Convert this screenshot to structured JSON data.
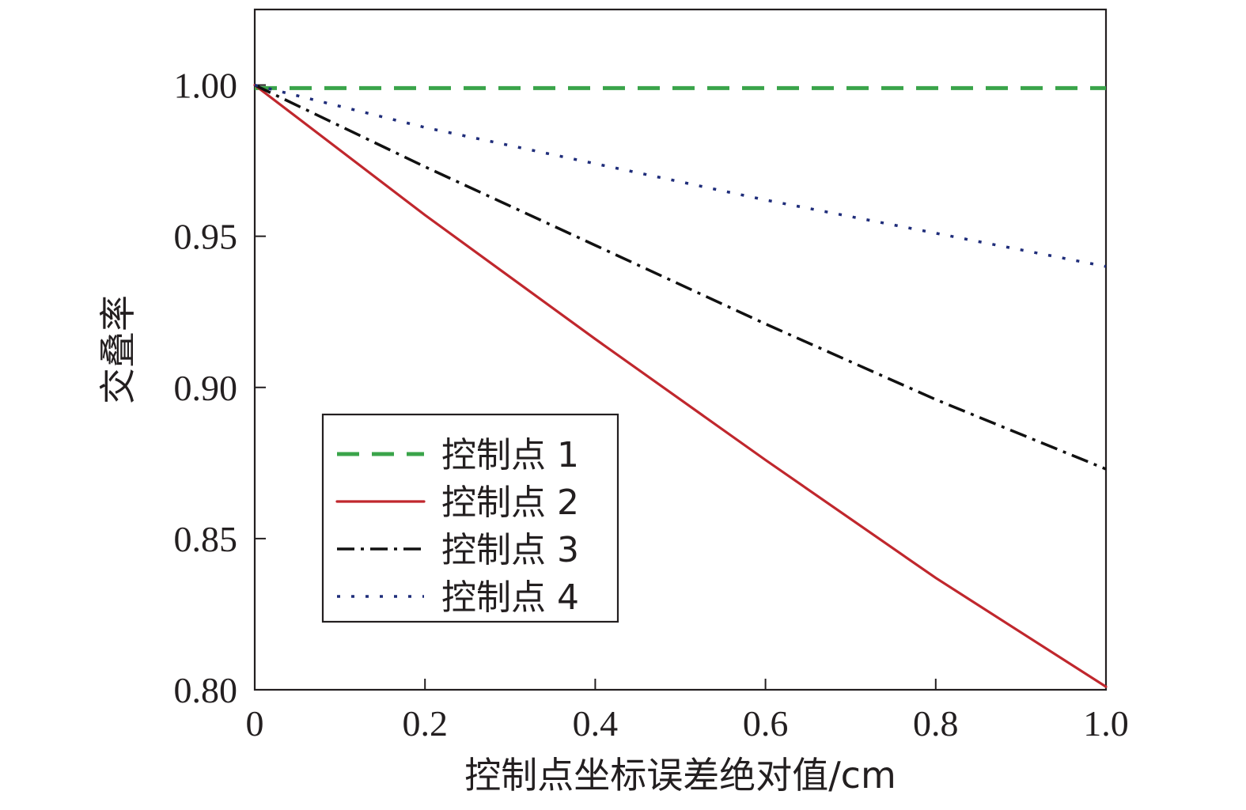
{
  "chart_data": {
    "type": "line",
    "title": "",
    "xlabel": "控制点坐标误差绝对值/cm",
    "ylabel": "交叠率",
    "xlim": [
      0,
      1.0
    ],
    "ylim": [
      0.8,
      1.025
    ],
    "x_ticks": [
      "0",
      "0.2",
      "0.4",
      "0.6",
      "0.8",
      "1.0"
    ],
    "y_ticks": [
      "0.80",
      "0.85",
      "0.90",
      "0.95",
      "1.00"
    ],
    "grid": false,
    "legend_position": "lower-left",
    "series": [
      {
        "name": "控制点 1",
        "color": "#3aa44a",
        "style": "dashed",
        "x": [
          0,
          0.2,
          0.4,
          0.6,
          0.8,
          1.0
        ],
        "y": [
          0.999,
          0.999,
          0.999,
          0.999,
          0.999,
          0.999
        ]
      },
      {
        "name": "控制点 2",
        "color": "#c0272d",
        "style": "solid",
        "x": [
          0,
          0.2,
          0.4,
          0.6,
          0.8,
          1.0
        ],
        "y": [
          1.0,
          0.957,
          0.916,
          0.876,
          0.837,
          0.801
        ]
      },
      {
        "name": "控制点 3",
        "color": "#111111",
        "style": "dashdot",
        "x": [
          0,
          0.2,
          0.4,
          0.6,
          0.8,
          1.0
        ],
        "y": [
          1.0,
          0.973,
          0.947,
          0.921,
          0.896,
          0.873
        ]
      },
      {
        "name": "控制点 4",
        "color": "#1f2d7a",
        "style": "dotted",
        "x": [
          0,
          0.2,
          0.4,
          0.6,
          0.8,
          1.0
        ],
        "y": [
          1.0,
          0.986,
          0.974,
          0.962,
          0.951,
          0.94
        ]
      }
    ]
  }
}
